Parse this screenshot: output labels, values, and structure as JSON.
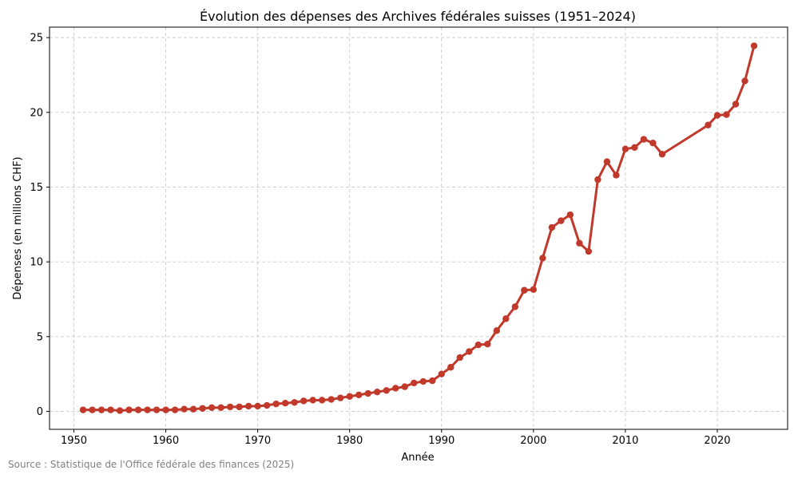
{
  "chart_data": {
    "type": "line",
    "title": "Évolution des dépenses des Archives fédérales suisses (1951–2024)",
    "xlabel": "Année",
    "ylabel": "Dépenses (en millions CHF)",
    "source": "Source : Statistique de l'Office fédérale des finances (2025)",
    "xlim": [
      1947.35,
      2027.65
    ],
    "ylim": [
      -1.2,
      25.7
    ],
    "xticks": [
      1950,
      1960,
      1970,
      1980,
      1990,
      2000,
      2010,
      2020
    ],
    "yticks": [
      0,
      5,
      10,
      15,
      20,
      25
    ],
    "grid": true,
    "color": "#c0392b",
    "x": [
      1951,
      1952,
      1953,
      1954,
      1955,
      1956,
      1957,
      1958,
      1959,
      1960,
      1961,
      1962,
      1963,
      1964,
      1965,
      1966,
      1967,
      1968,
      1969,
      1970,
      1971,
      1972,
      1973,
      1974,
      1975,
      1976,
      1977,
      1978,
      1979,
      1980,
      1981,
      1982,
      1983,
      1984,
      1985,
      1986,
      1987,
      1988,
      1989,
      1990,
      1991,
      1992,
      1993,
      1994,
      1995,
      1996,
      1997,
      1998,
      1999,
      2000,
      2001,
      2002,
      2003,
      2004,
      2005,
      2006,
      2007,
      2008,
      2009,
      2010,
      2011,
      2012,
      2013,
      2014,
      2019,
      2020,
      2021,
      2022,
      2023,
      2024
    ],
    "y": [
      0.1,
      0.1,
      0.1,
      0.1,
      0.05,
      0.1,
      0.1,
      0.1,
      0.1,
      0.1,
      0.1,
      0.15,
      0.15,
      0.2,
      0.25,
      0.25,
      0.3,
      0.3,
      0.35,
      0.35,
      0.4,
      0.5,
      0.55,
      0.6,
      0.7,
      0.75,
      0.75,
      0.8,
      0.9,
      1.0,
      1.1,
      1.2,
      1.3,
      1.4,
      1.55,
      1.65,
      1.9,
      2.0,
      2.05,
      2.5,
      2.95,
      3.6,
      4.0,
      4.45,
      4.5,
      5.4,
      6.2,
      7.0,
      8.1,
      8.15,
      10.25,
      12.3,
      12.75,
      13.15,
      11.25,
      10.7,
      15.5,
      16.7,
      15.8,
      17.55,
      17.65,
      18.2,
      17.95,
      17.2,
      19.15,
      19.8,
      19.85,
      20.55,
      22.1,
      24.45
    ]
  }
}
